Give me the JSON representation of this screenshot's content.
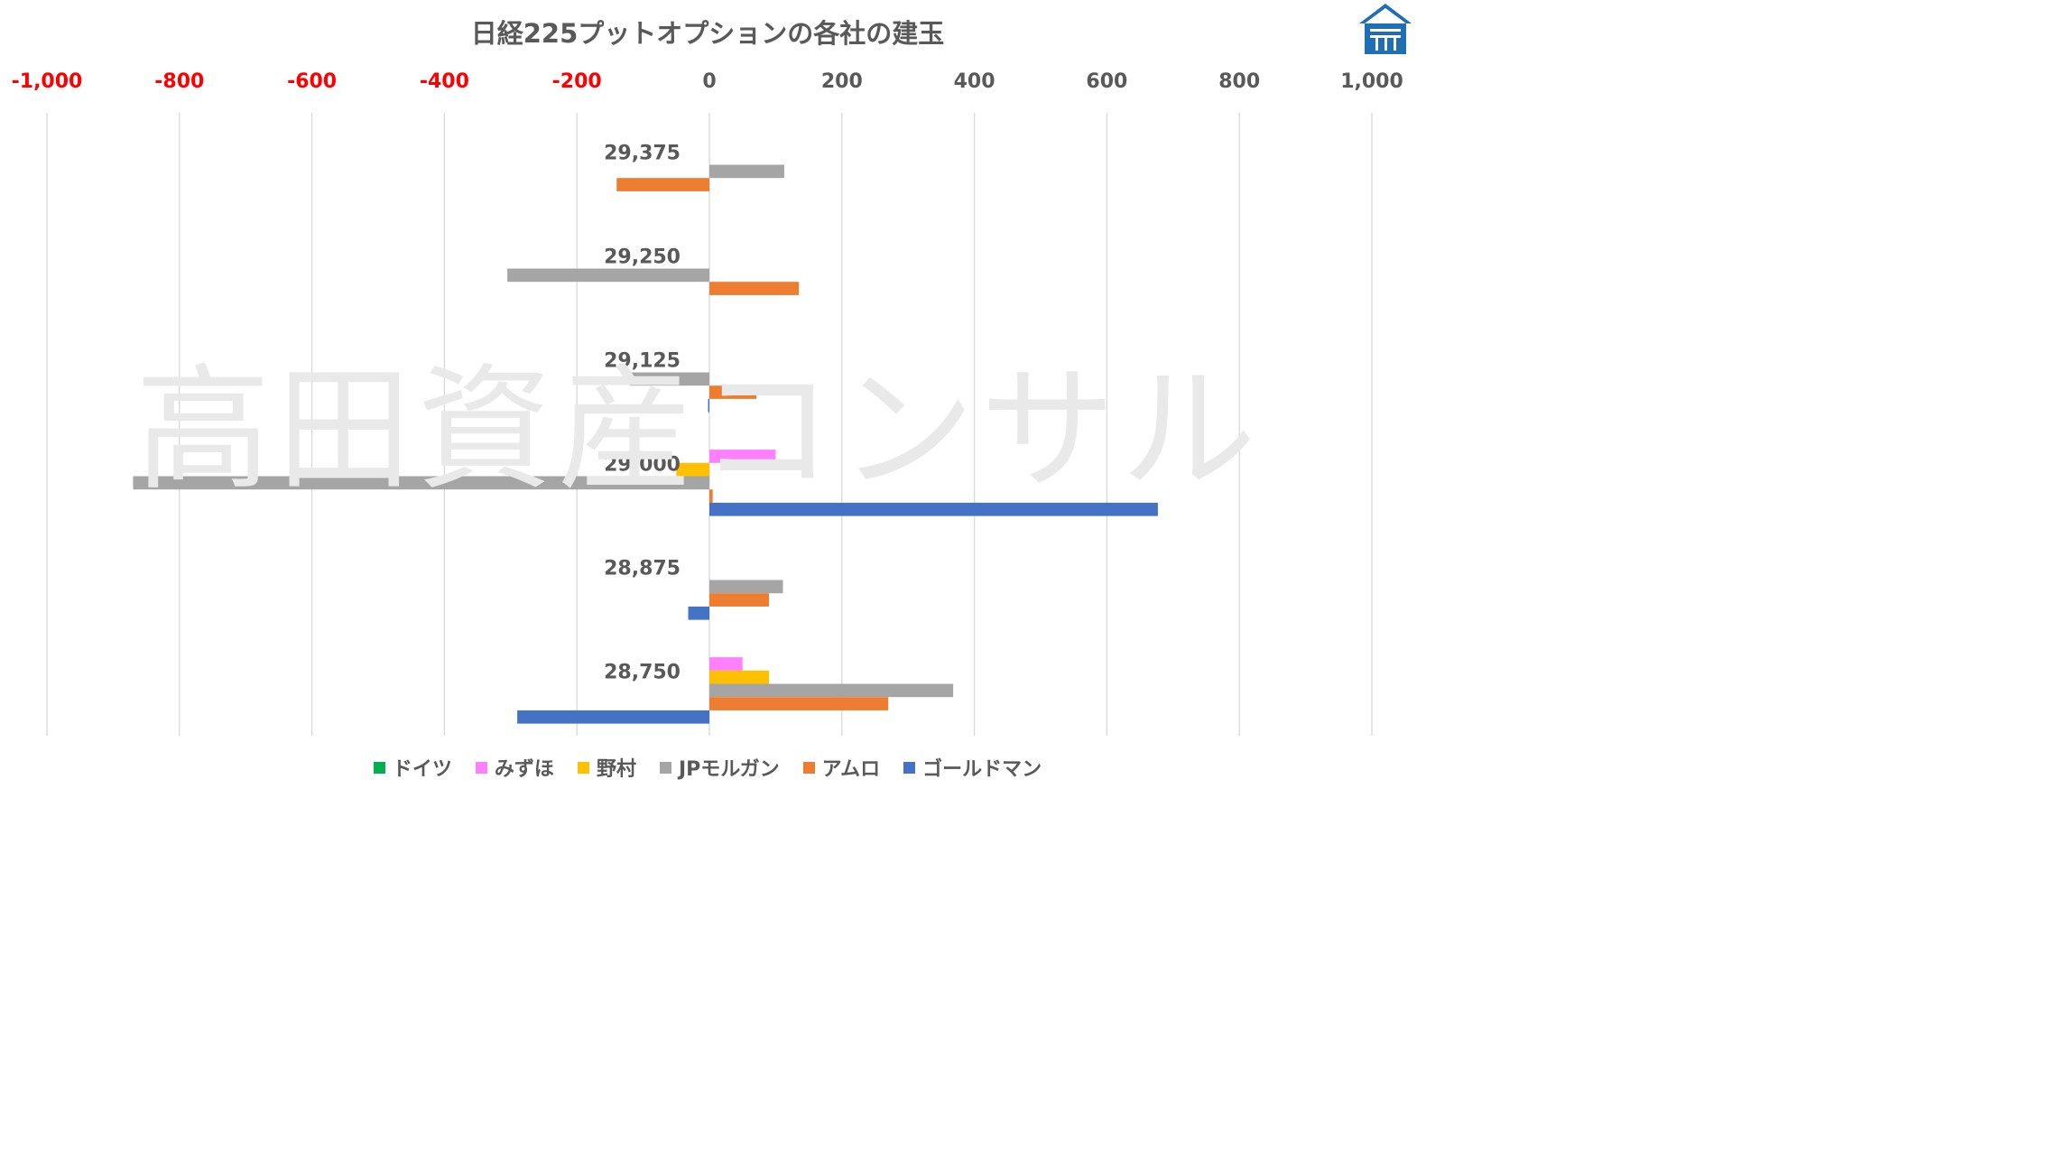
{
  "title": "日経225プットオプションの各社の建玉",
  "watermark": "高田資産コンサル",
  "colors": {
    "ドイツ": "#00b050",
    "みずほ": "#ff80ff",
    "野村": "#ffc000",
    "JPモルガン": "#a5a5a5",
    "アムロ": "#ed7d31",
    "ゴールドマン": "#4472c4",
    "negative_tick": "#ff0000",
    "positive_tick": "#595959",
    "grid": "#d9d9d9"
  },
  "chart_data": {
    "type": "bar",
    "orientation": "horizontal",
    "title": "日経225プットオプションの各社の建玉",
    "xlim": [
      -1000,
      1000
    ],
    "x_ticks": [
      "-1,000",
      "-800",
      "-600",
      "-400",
      "-200",
      "0",
      "200",
      "400",
      "600",
      "800",
      "1,000"
    ],
    "x_tick_values": [
      -1000,
      -800,
      -600,
      -400,
      -200,
      0,
      200,
      400,
      600,
      800,
      1000
    ],
    "legend_position": "bottom",
    "grid": true,
    "categories": [
      "29,375",
      "29,250",
      "29,125",
      "29,000",
      "28,875",
      "28,750"
    ],
    "series": [
      {
        "name": "ドイツ",
        "values": [
          0,
          0,
          0,
          0,
          0,
          0
        ]
      },
      {
        "name": "みずほ",
        "values": [
          0,
          0,
          0,
          100,
          0,
          50
        ]
      },
      {
        "name": "野村",
        "values": [
          0,
          0,
          0,
          -50,
          0,
          90
        ]
      },
      {
        "name": "JPモルガン",
        "values": [
          113,
          -305,
          -120,
          -870,
          111,
          368
        ]
      },
      {
        "name": "アムロ",
        "values": [
          -140,
          135,
          71,
          5,
          90,
          270
        ]
      },
      {
        "name": "ゴールドマン",
        "values": [
          0,
          0,
          -2,
          677,
          -32,
          -290
        ]
      }
    ]
  }
}
